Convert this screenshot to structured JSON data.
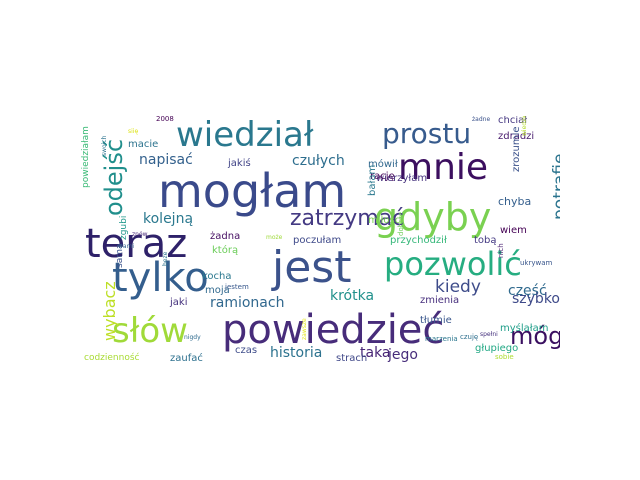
{
  "wordcloud": {
    "words": [
      {
        "text": "mogłam",
        "color": "#3a4a8b"
      },
      {
        "text": "powiedzieć",
        "color": "#472c7a"
      },
      {
        "text": "jest",
        "color": "#3b528b"
      },
      {
        "text": "teraz",
        "color": "#2e2169"
      },
      {
        "text": "tylko",
        "color": "#345e8d"
      },
      {
        "text": "gdyby",
        "color": "#7ad151"
      },
      {
        "text": "pozwolić",
        "color": "#26ad81"
      },
      {
        "text": "mnie",
        "color": "#3c0f5f"
      },
      {
        "text": "wiedział",
        "color": "#2a788e"
      },
      {
        "text": "słów",
        "color": "#a0da39"
      },
      {
        "text": "prostu",
        "color": "#375b8d"
      },
      {
        "text": "odejść",
        "color": "#208f8c"
      },
      {
        "text": "zatrzymać",
        "color": "#443a83"
      },
      {
        "text": "mógł",
        "color": "#3a0f60"
      },
      {
        "text": "potrafię",
        "color": "#2b748e"
      },
      {
        "text": "kiedy",
        "color": "#3e4c8a"
      },
      {
        "text": "część",
        "color": "#306a8e"
      },
      {
        "text": "wybacz",
        "color": "#bddf26"
      },
      {
        "text": "krótka",
        "color": "#21918c"
      },
      {
        "text": "ramionach",
        "color": "#31688e"
      },
      {
        "text": "historia",
        "color": "#2c728e"
      },
      {
        "text": "taka",
        "color": "#482576"
      },
      {
        "text": "jego",
        "color": "#472d7b"
      },
      {
        "text": "szybko",
        "color": "#3e4a89"
      },
      {
        "text": "kolejną",
        "color": "#2a788e"
      },
      {
        "text": "napisać",
        "color": "#34618d"
      },
      {
        "text": "czułych",
        "color": "#2e6e8e"
      },
      {
        "text": "przychodził",
        "color": "#35b779"
      },
      {
        "text": "tobą",
        "color": "#443983"
      },
      {
        "text": "miłości",
        "color": "#7ad151"
      },
      {
        "text": "chyba",
        "color": "#355f8d"
      },
      {
        "text": "głupiego",
        "color": "#22a884"
      },
      {
        "text": "tłumie",
        "color": "#39568c"
      },
      {
        "text": "zdradzi",
        "color": "#481b6d"
      },
      {
        "text": "wierzyłam",
        "color": "#46327e"
      },
      {
        "text": "chciał",
        "color": "#453781"
      },
      {
        "text": "macie",
        "color": "#2c738e"
      },
      {
        "text": "zgubi",
        "color": "#1f988b"
      },
      {
        "text": "jakiś",
        "color": "#414487"
      },
      {
        "text": "mówił",
        "color": "#31688e"
      },
      {
        "text": "rację",
        "color": "#46075a"
      },
      {
        "text": "bałam",
        "color": "#2a788e"
      },
      {
        "text": "zrozumie",
        "color": "#3b528b"
      },
      {
        "text": "wiem",
        "color": "#440154"
      },
      {
        "text": "poczułam",
        "color": "#3e4989"
      },
      {
        "text": "żadna",
        "color": "#471063"
      },
      {
        "text": "którą",
        "color": "#6ccd5a"
      },
      {
        "text": "kocha",
        "color": "#2a788e"
      },
      {
        "text": "moja",
        "color": "#30698e"
      },
      {
        "text": "jaki",
        "color": "#46337e"
      },
      {
        "text": "zmienia",
        "color": "#472f7d"
      },
      {
        "text": "strach",
        "color": "#3f4788"
      },
      {
        "text": "czas",
        "color": "#3e4c8a"
      },
      {
        "text": "myślałam",
        "color": "#1f9e89"
      },
      {
        "text": "codzienność",
        "color": "#a8db34"
      },
      {
        "text": "zaufać",
        "color": "#2d708e"
      },
      {
        "text": "powiedziałam",
        "color": "#3aba76"
      },
      {
        "text": "sama",
        "color": "#3b528b"
      },
      {
        "text": "dobrze",
        "color": "#6ece58"
      },
      {
        "text": "jestem",
        "color": "#38588c"
      },
      {
        "text": "marzenia",
        "color": "#2a768e"
      },
      {
        "text": "czuję",
        "color": "#2e6f8e"
      },
      {
        "text": "sobie",
        "color": "#addc30"
      },
      {
        "text": "nich",
        "color": "#481f70"
      },
      {
        "text": "ukrywam",
        "color": "#39568c"
      },
      {
        "text": "2008",
        "color": "#440154"
      },
      {
        "text": "wiedziec",
        "color": "#b5de2b"
      },
      {
        "text": "swoich",
        "color": "#2c738e"
      },
      {
        "text": "nigdy",
        "color": "#2f6b8e"
      },
      {
        "text": "żadne",
        "color": "#3b528b"
      },
      {
        "text": "spełni",
        "color": "#46327e"
      },
      {
        "text": "może",
        "color": "#9fda3a"
      },
      {
        "text": "wami",
        "color": "#34618d"
      },
      {
        "text": "znów",
        "color": "#482878"
      },
      {
        "text": "siię",
        "color": "#dde318"
      },
      {
        "text": "beze",
        "color": "#2d718e"
      },
      {
        "text": "zawsze",
        "color": "#e5e419"
      }
    ]
  }
}
